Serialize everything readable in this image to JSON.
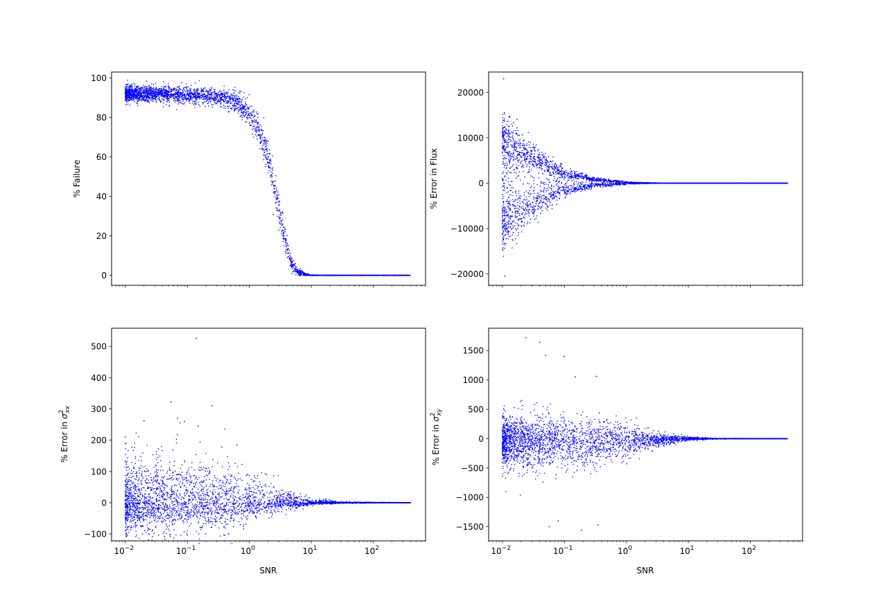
{
  "figure": {
    "background": "#ffffff",
    "marker_color": "#0000ff"
  },
  "chart_data": [
    {
      "type": "scatter",
      "position": "top-left",
      "title": "",
      "xlabel": "",
      "ylabel": "% Failure",
      "xscale": "log",
      "xlim": [
        0.006,
        700
      ],
      "ylim": [
        -5,
        103
      ],
      "yticks": [
        0,
        20,
        40,
        60,
        80,
        100
      ],
      "ytick_labels": [
        "0",
        "20",
        "40",
        "60",
        "80",
        "100"
      ],
      "xtick_labels_visible": false,
      "grid": false,
      "legend": "none",
      "series": [
        {
          "color": "#0000ff",
          "marker_size": 1.5,
          "trend": {
            "x": [
              0.01,
              0.03,
              0.1,
              0.3,
              0.6,
              1.0,
              1.5,
              2.0,
              2.5,
              3.0,
              3.5,
              4.0,
              5.0,
              6.0,
              8.0,
              10.0,
              30.0,
              100.0,
              300.0,
              400.0
            ],
            "y": [
              92,
              92,
              91.5,
              90.5,
              88,
              82,
              72,
              60,
              46,
              34,
              23,
              14,
              5,
              2,
              0.5,
              0,
              0,
              0,
              0,
              0
            ],
            "spread": [
              4,
              4,
              4,
              4,
              5,
              6,
              7,
              8,
              8,
              8,
              7,
              6,
              4,
              2,
              1,
              0.3,
              0,
              0,
              0,
              0
            ]
          }
        }
      ]
    },
    {
      "type": "scatter",
      "position": "top-right",
      "title": "",
      "xlabel": "",
      "ylabel": "% Error in Flux",
      "xscale": "log",
      "xlim": [
        0.006,
        700
      ],
      "ylim": [
        -22500,
        24500
      ],
      "yticks": [
        -20000,
        -10000,
        0,
        10000,
        20000
      ],
      "ytick_labels": [
        "−20000",
        "−10000",
        "0",
        "10000",
        "20000"
      ],
      "xtick_labels_visible": false,
      "grid": false,
      "legend": "none",
      "series": [
        {
          "color": "#0000ff",
          "marker_size": 1.5,
          "trend": {
            "x": [
              0.01,
              0.02,
              0.05,
              0.1,
              0.3,
              1.0,
              3.0,
              10.0,
              100.0,
              400.0
            ],
            "upper_branch": [
              9500,
              7000,
              4000,
              2200,
              800,
              200,
              40,
              0,
              0,
              0
            ],
            "lower_branch": [
              -9000,
              -6500,
              -3500,
              -1600,
              -500,
              -120,
              -20,
              0,
              0,
              0
            ],
            "spread": [
              5000,
              3500,
              2000,
              1000,
              400,
              120,
              30,
              5,
              0,
              0
            ]
          },
          "extremes": {
            "max": 23000,
            "min": -20500
          }
        }
      ]
    },
    {
      "type": "scatter",
      "position": "bottom-left",
      "title": "",
      "xlabel": "SNR",
      "ylabel": "% Error in σ²_xx",
      "xscale": "log",
      "xlim": [
        0.006,
        700
      ],
      "ylim": [
        -122,
        558
      ],
      "yticks": [
        -100,
        0,
        100,
        200,
        300,
        400,
        500
      ],
      "ytick_labels": [
        "−100",
        "0",
        "100",
        "200",
        "300",
        "400",
        "500"
      ],
      "xticks": [
        0.01,
        0.1,
        1,
        10,
        100
      ],
      "xtick_labels": [
        {
          "base": "10",
          "exp": "−2"
        },
        {
          "base": "10",
          "exp": "−1"
        },
        {
          "base": "10",
          "exp": "0"
        },
        {
          "base": "10",
          "exp": "1"
        },
        {
          "base": "10",
          "exp": "2"
        }
      ],
      "grid": false,
      "legend": "none",
      "series": [
        {
          "color": "#0000ff",
          "marker_size": 1.5,
          "trend": {
            "x": [
              0.01,
              0.1,
              0.5,
              1.0,
              3.0,
              10.0,
              30.0,
              400.0
            ],
            "center": [
              0,
              0,
              0,
              0,
              0,
              0,
              0,
              0
            ],
            "spread": [
              45,
              45,
              40,
              30,
              15,
              4,
              1,
              0
            ]
          },
          "outliers": [
            {
              "x": 0.14,
              "y": 525
            },
            {
              "x": 0.055,
              "y": 322
            },
            {
              "x": 0.25,
              "y": 310
            },
            {
              "x": 0.07,
              "y": 270
            },
            {
              "x": 0.02,
              "y": 262
            },
            {
              "x": 0.01,
              "y": 210
            },
            {
              "x": 0.15,
              "y": 245
            },
            {
              "x": 0.09,
              "y": 260
            }
          ]
        }
      ]
    },
    {
      "type": "scatter",
      "position": "bottom-right",
      "title": "",
      "xlabel": "SNR",
      "ylabel": "% Error in σ²_xy",
      "xscale": "log",
      "xlim": [
        0.006,
        700
      ],
      "ylim": [
        -1740,
        1880
      ],
      "yticks": [
        -1500,
        -1000,
        -500,
        0,
        500,
        1000,
        1500
      ],
      "ytick_labels": [
        "−1500",
        "−1000",
        "−500",
        "0",
        "500",
        "1000",
        "1500"
      ],
      "xticks": [
        0.01,
        0.1,
        1,
        10,
        100
      ],
      "xtick_labels": [
        {
          "base": "10",
          "exp": "−2"
        },
        {
          "base": "10",
          "exp": "−1"
        },
        {
          "base": "10",
          "exp": "0"
        },
        {
          "base": "10",
          "exp": "1"
        },
        {
          "base": "10",
          "exp": "2"
        }
      ],
      "grid": false,
      "legend": "none",
      "series": [
        {
          "color": "#0000ff",
          "marker_size": 1.5,
          "trend": {
            "x": [
              0.01,
              0.1,
              0.5,
              1.0,
              3.0,
              10.0,
              30.0,
              400.0
            ],
            "center": [
              -60,
              -60,
              -50,
              -40,
              -20,
              0,
              0,
              0
            ],
            "spread": [
              230,
              220,
              190,
              140,
              60,
              15,
              3,
              0
            ]
          },
          "outliers": [
            {
              "x": 0.024,
              "y": 1720
            },
            {
              "x": 0.04,
              "y": 1640
            },
            {
              "x": 0.05,
              "y": 1420
            },
            {
              "x": 0.1,
              "y": 1400
            },
            {
              "x": 0.19,
              "y": -1560
            },
            {
              "x": 0.35,
              "y": -1470
            },
            {
              "x": 0.057,
              "y": -1500
            },
            {
              "x": 0.08,
              "y": -1400
            },
            {
              "x": 0.15,
              "y": 1050
            },
            {
              "x": 0.33,
              "y": 1060
            }
          ]
        }
      ]
    }
  ]
}
